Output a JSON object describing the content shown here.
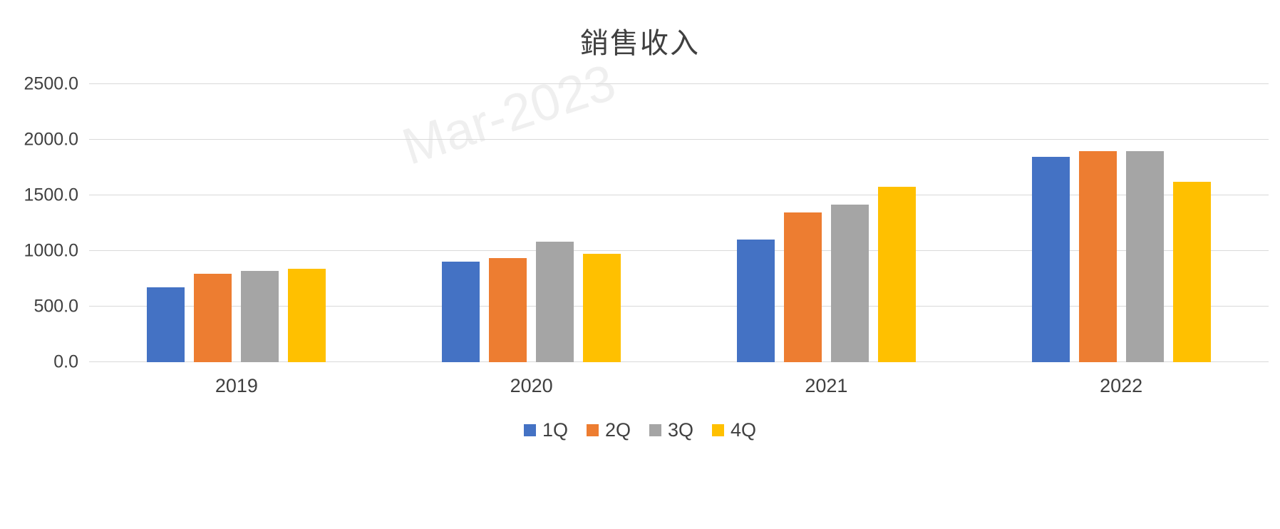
{
  "title": "銷售收入",
  "watermark": "Mar-2023",
  "chart_data": {
    "type": "bar",
    "title": "銷售收入",
    "categories": [
      "2019",
      "2020",
      "2021",
      "2022"
    ],
    "series": [
      {
        "name": "1Q",
        "color": "#4472C4",
        "values": [
          670,
          905,
          1100,
          1845
        ]
      },
      {
        "name": "2Q",
        "color": "#ED7D31",
        "values": [
          795,
          935,
          1345,
          1900
        ]
      },
      {
        "name": "3Q",
        "color": "#A5A5A5",
        "values": [
          820,
          1085,
          1415,
          1900
        ]
      },
      {
        "name": "4Q",
        "color": "#FFC000",
        "values": [
          840,
          975,
          1575,
          1620
        ]
      }
    ],
    "xlabel": "",
    "ylabel": "",
    "ylim": [
      0,
      2500
    ],
    "ytick_step": 500,
    "yticks": [
      "0.0",
      "500.0",
      "1000.0",
      "1500.0",
      "2000.0",
      "2500.0"
    ],
    "grid": true,
    "legend_position": "bottom"
  }
}
